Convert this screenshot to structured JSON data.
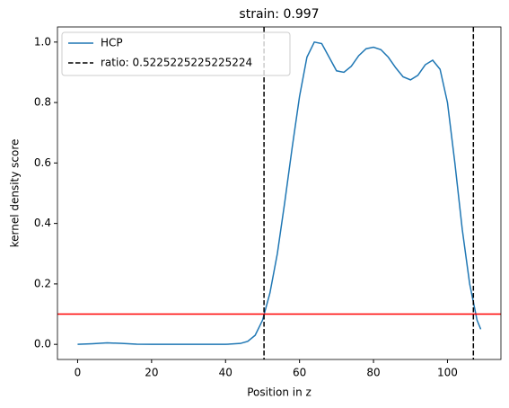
{
  "chart_data": {
    "type": "line",
    "title": "strain: 0.997",
    "xlabel": "Position in z",
    "ylabel": "kernel density score",
    "x": [
      0,
      4,
      8,
      12,
      16,
      20,
      24,
      28,
      32,
      36,
      40,
      44,
      46,
      48,
      50,
      52,
      54,
      56,
      58,
      60,
      62,
      64,
      66,
      68,
      70,
      72,
      74,
      76,
      78,
      80,
      82,
      84,
      86,
      88,
      90,
      92,
      94,
      96,
      98,
      100,
      102,
      104,
      106,
      108,
      109
    ],
    "series": [
      {
        "name": "HCP",
        "color": "#1f77b4",
        "values": [
          0,
          0.002,
          0.005,
          0.003,
          0.0005,
          0,
          0,
          0,
          0,
          0,
          0,
          0.003,
          0.01,
          0.03,
          0.08,
          0.17,
          0.3,
          0.47,
          0.65,
          0.82,
          0.95,
          1.0,
          0.995,
          0.95,
          0.905,
          0.9,
          0.92,
          0.955,
          0.978,
          0.983,
          0.975,
          0.95,
          0.915,
          0.885,
          0.875,
          0.89,
          0.925,
          0.94,
          0.91,
          0.8,
          0.6,
          0.38,
          0.2,
          0.08,
          0.05
        ]
      }
    ],
    "vlines": [
      50.4,
      107.0
    ],
    "vline_label": "ratio: 0.5225225225225224",
    "vline_color": "#000000",
    "hline": 0.1,
    "hline_color": "#ff0000",
    "xlim": [
      -5.45,
      114.45
    ],
    "ylim": [
      -0.05,
      1.05
    ],
    "xticks": [
      0,
      20,
      40,
      60,
      80,
      100
    ],
    "yticks": [
      {
        "value": 0,
        "label": "0.0"
      },
      {
        "value": 0.2,
        "label": "0.2"
      },
      {
        "value": 0.4,
        "label": "0.4"
      },
      {
        "value": 0.6,
        "label": "0.6"
      },
      {
        "value": 0.8,
        "label": "0.8"
      },
      {
        "value": 1,
        "label": "1.0"
      }
    ],
    "legend": "upper left"
  }
}
